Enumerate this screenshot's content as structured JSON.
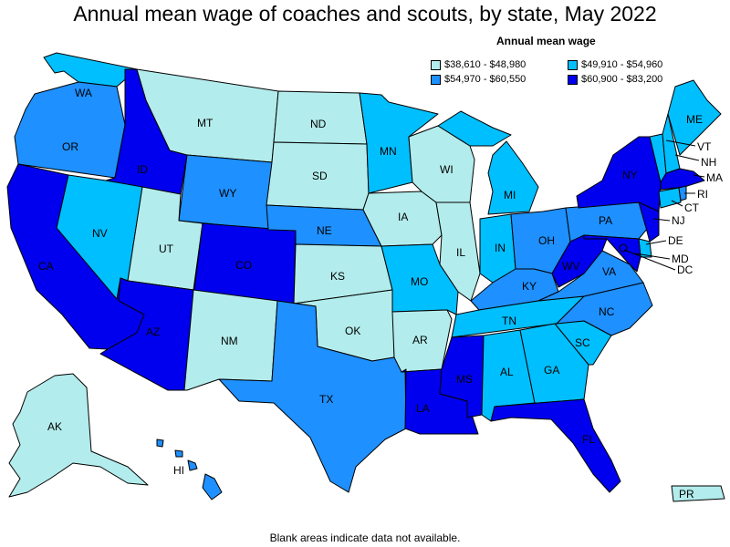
{
  "title": "Annual mean wage of coaches and scouts, by state, May 2022",
  "legend": {
    "title": "Annual mean wage",
    "items": [
      {
        "key": "c1",
        "label": "$38,610 - $48,980",
        "color": "#b3ecec"
      },
      {
        "key": "c2",
        "label": "$49,910 - $54,960",
        "color": "#00bfff"
      },
      {
        "key": "c3",
        "label": "$54,970 - $60,550",
        "color": "#1e90ff"
      },
      {
        "key": "c4",
        "label": "$60,900 - $83,200",
        "color": "#0000ee"
      }
    ]
  },
  "note": "Blank areas indicate data not available.",
  "states": {
    "WA": "c2",
    "OR": "c3",
    "CA": "c4",
    "ID": "c4",
    "NV": "c2",
    "MT": "c1",
    "WY": "c3",
    "UT": "c1",
    "AZ": "c4",
    "CO": "c4",
    "NM": "c1",
    "ND": "c1",
    "SD": "c1",
    "NE": "c3",
    "KS": "c1",
    "OK": "c1",
    "TX": "c3",
    "MN": "c2",
    "IA": "c1",
    "MO": "c2",
    "AR": "c1",
    "LA": "c4",
    "WI": "c1",
    "IL": "c1",
    "MI": "c2",
    "IN": "c2",
    "OH": "c3",
    "KY": "c3",
    "TN": "c2",
    "MS": "c4",
    "AL": "c2",
    "GA": "c2",
    "FL": "c4",
    "SC": "c2",
    "NC": "c3",
    "VA": "c3",
    "WV": "c4",
    "PA": "c3",
    "NY": "c4",
    "VT": "c2",
    "NH": "c2",
    "ME": "c2",
    "MA": "c4",
    "CT": "c2",
    "RI": "c3",
    "NJ": "c4",
    "DE": "c2",
    "MD": "c4",
    "DC": "c4",
    "AK": "c1",
    "HI": "c3",
    "PR": "c1"
  }
}
